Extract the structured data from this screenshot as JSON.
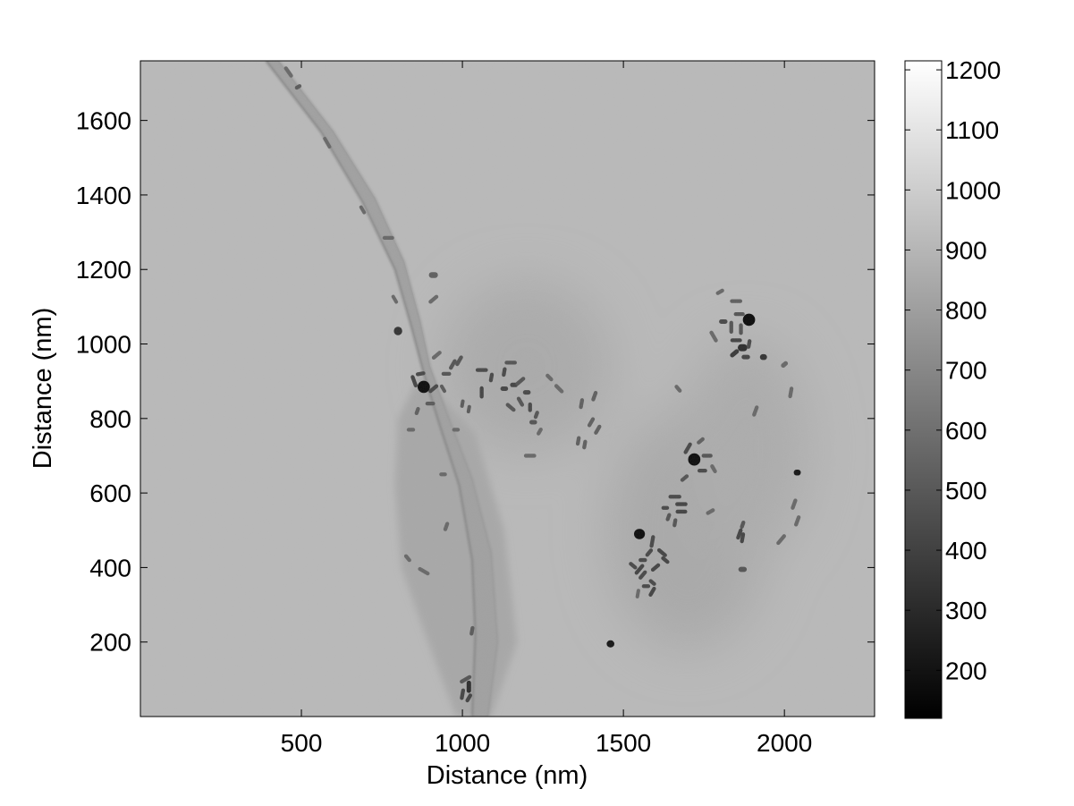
{
  "chart_data": {
    "type": "heatmap",
    "title": "",
    "xlabel": "Distance (nm)",
    "ylabel": "Distance (nm)",
    "xlim": [
      0,
      2280
    ],
    "ylim": [
      0,
      1760
    ],
    "x_ticks": [
      500,
      1000,
      1500,
      2000
    ],
    "y_ticks": [
      200,
      400,
      600,
      800,
      1000,
      1200,
      1400,
      1600
    ],
    "colorbar": {
      "colormap": "gray",
      "range": [
        120,
        1215
      ],
      "ticks": [
        200,
        300,
        400,
        500,
        600,
        700,
        800,
        900,
        1000,
        1100,
        1200
      ]
    },
    "background_intensity": 915,
    "membrane": {
      "edge_intensity": 760,
      "body_intensity": 835,
      "outer_edge": [
        [
          390,
          1760
        ],
        [
          560,
          1570
        ],
        [
          690,
          1380
        ],
        [
          790,
          1200
        ],
        [
          840,
          1050
        ],
        [
          880,
          920
        ],
        [
          930,
          780
        ],
        [
          990,
          620
        ],
        [
          1030,
          420
        ],
        [
          1040,
          220
        ],
        [
          1030,
          0
        ]
      ],
      "inner_edge": [
        [
          430,
          1760
        ],
        [
          600,
          1570
        ],
        [
          730,
          1390
        ],
        [
          820,
          1220
        ],
        [
          870,
          1060
        ],
        [
          900,
          940
        ],
        [
          950,
          820
        ],
        [
          1030,
          640
        ],
        [
          1090,
          440
        ],
        [
          1110,
          200
        ],
        [
          1080,
          0
        ]
      ],
      "wide_body": [
        [
          870,
          920
        ],
        [
          800,
          800
        ],
        [
          790,
          620
        ],
        [
          810,
          400
        ],
        [
          880,
          230
        ],
        [
          980,
          0
        ],
        [
          1090,
          0
        ],
        [
          1170,
          200
        ],
        [
          1130,
          500
        ],
        [
          1040,
          760
        ]
      ]
    },
    "diffuse_regions": [
      {
        "x": 1200,
        "y": 940,
        "rx": 260,
        "ry": 230,
        "intensity": 850
      },
      {
        "x": 1700,
        "y": 500,
        "rx": 250,
        "ry": 320,
        "intensity": 845
      },
      {
        "x": 1880,
        "y": 720,
        "rx": 200,
        "ry": 300,
        "intensity": 860
      }
    ],
    "particles": [
      {
        "x": 460,
        "y": 1730,
        "len": 40,
        "w": 12,
        "angle": -55,
        "intensity": 560
      },
      {
        "x": 490,
        "y": 1690,
        "len": 22,
        "w": 12,
        "angle": 30,
        "intensity": 500
      },
      {
        "x": 580,
        "y": 1540,
        "len": 40,
        "w": 11,
        "angle": -60,
        "intensity": 560
      },
      {
        "x": 690,
        "y": 1360,
        "len": 30,
        "w": 11,
        "angle": -60,
        "intensity": 560
      },
      {
        "x": 770,
        "y": 1285,
        "len": 36,
        "w": 12,
        "angle": 0,
        "intensity": 560
      },
      {
        "x": 910,
        "y": 1185,
        "len": 28,
        "w": 18,
        "angle": 0,
        "intensity": 520
      },
      {
        "x": 910,
        "y": 1120,
        "len": 36,
        "w": 12,
        "angle": 40,
        "intensity": 560
      },
      {
        "x": 790,
        "y": 1120,
        "len": 30,
        "w": 11,
        "angle": -60,
        "intensity": 560
      },
      {
        "x": 800,
        "y": 1035,
        "len": 26,
        "w": 26,
        "angle": 0,
        "intensity": 330
      },
      {
        "x": 880,
        "y": 885,
        "len": 38,
        "w": 38,
        "angle": 0,
        "intensity": 160
      },
      {
        "x": 850,
        "y": 900,
        "len": 40,
        "w": 12,
        "angle": -70,
        "intensity": 400
      },
      {
        "x": 910,
        "y": 880,
        "len": 36,
        "w": 12,
        "angle": 40,
        "intensity": 420
      },
      {
        "x": 900,
        "y": 840,
        "len": 30,
        "w": 12,
        "angle": 0,
        "intensity": 500
      },
      {
        "x": 860,
        "y": 820,
        "len": 26,
        "w": 12,
        "angle": 70,
        "intensity": 520
      },
      {
        "x": 870,
        "y": 920,
        "len": 30,
        "w": 12,
        "angle": 10,
        "intensity": 420
      },
      {
        "x": 920,
        "y": 970,
        "len": 36,
        "w": 12,
        "angle": 40,
        "intensity": 560
      },
      {
        "x": 970,
        "y": 945,
        "len": 36,
        "w": 12,
        "angle": 60,
        "intensity": 470
      },
      {
        "x": 990,
        "y": 955,
        "len": 36,
        "w": 12,
        "angle": 60,
        "intensity": 470
      },
      {
        "x": 950,
        "y": 920,
        "len": 30,
        "w": 12,
        "angle": 0,
        "intensity": 470
      },
      {
        "x": 940,
        "y": 880,
        "len": 28,
        "w": 11,
        "angle": -60,
        "intensity": 500
      },
      {
        "x": 1000,
        "y": 840,
        "len": 26,
        "w": 11,
        "angle": 80,
        "intensity": 500
      },
      {
        "x": 1020,
        "y": 825,
        "len": 26,
        "w": 11,
        "angle": 80,
        "intensity": 500
      },
      {
        "x": 980,
        "y": 770,
        "len": 24,
        "w": 12,
        "angle": 0,
        "intensity": 560
      },
      {
        "x": 840,
        "y": 770,
        "len": 26,
        "w": 12,
        "angle": 0,
        "intensity": 560
      },
      {
        "x": 1060,
        "y": 930,
        "len": 38,
        "w": 12,
        "angle": 0,
        "intensity": 420
      },
      {
        "x": 1060,
        "y": 870,
        "len": 38,
        "w": 12,
        "angle": 90,
        "intensity": 400
      },
      {
        "x": 1090,
        "y": 910,
        "len": 30,
        "w": 12,
        "angle": 80,
        "intensity": 420
      },
      {
        "x": 1130,
        "y": 925,
        "len": 30,
        "w": 12,
        "angle": 80,
        "intensity": 420
      },
      {
        "x": 1150,
        "y": 950,
        "len": 38,
        "w": 12,
        "angle": 0,
        "intensity": 470
      },
      {
        "x": 1130,
        "y": 880,
        "len": 24,
        "w": 14,
        "angle": 0,
        "intensity": 400
      },
      {
        "x": 1160,
        "y": 890,
        "len": 24,
        "w": 14,
        "angle": 0,
        "intensity": 400
      },
      {
        "x": 1180,
        "y": 900,
        "len": 36,
        "w": 12,
        "angle": 40,
        "intensity": 470
      },
      {
        "x": 1200,
        "y": 870,
        "len": 24,
        "w": 14,
        "angle": 0,
        "intensity": 420
      },
      {
        "x": 1180,
        "y": 845,
        "len": 34,
        "w": 12,
        "angle": -60,
        "intensity": 470
      },
      {
        "x": 1150,
        "y": 830,
        "len": 36,
        "w": 12,
        "angle": -40,
        "intensity": 470
      },
      {
        "x": 1210,
        "y": 830,
        "len": 30,
        "w": 12,
        "angle": 90,
        "intensity": 420
      },
      {
        "x": 1230,
        "y": 810,
        "len": 26,
        "w": 12,
        "angle": 70,
        "intensity": 470
      },
      {
        "x": 1220,
        "y": 790,
        "len": 24,
        "w": 14,
        "angle": 0,
        "intensity": 470
      },
      {
        "x": 1240,
        "y": 765,
        "len": 26,
        "w": 12,
        "angle": 60,
        "intensity": 560
      },
      {
        "x": 1300,
        "y": 880,
        "len": 36,
        "w": 12,
        "angle": -45,
        "intensity": 560
      },
      {
        "x": 1270,
        "y": 910,
        "len": 28,
        "w": 12,
        "angle": -45,
        "intensity": 560
      },
      {
        "x": 1210,
        "y": 700,
        "len": 38,
        "w": 12,
        "angle": 0,
        "intensity": 560
      },
      {
        "x": 1370,
        "y": 840,
        "len": 34,
        "w": 12,
        "angle": 80,
        "intensity": 520
      },
      {
        "x": 1410,
        "y": 860,
        "len": 34,
        "w": 12,
        "angle": 70,
        "intensity": 520
      },
      {
        "x": 1400,
        "y": 790,
        "len": 34,
        "w": 12,
        "angle": 60,
        "intensity": 520
      },
      {
        "x": 1420,
        "y": 770,
        "len": 34,
        "w": 12,
        "angle": 60,
        "intensity": 520
      },
      {
        "x": 1360,
        "y": 740,
        "len": 30,
        "w": 12,
        "angle": 80,
        "intensity": 520
      },
      {
        "x": 1380,
        "y": 730,
        "len": 30,
        "w": 12,
        "angle": 80,
        "intensity": 520
      },
      {
        "x": 1800,
        "y": 1140,
        "len": 28,
        "w": 12,
        "angle": 30,
        "intensity": 560
      },
      {
        "x": 1850,
        "y": 1115,
        "len": 38,
        "w": 12,
        "angle": 0,
        "intensity": 520
      },
      {
        "x": 1810,
        "y": 1060,
        "len": 26,
        "w": 14,
        "angle": 0,
        "intensity": 420
      },
      {
        "x": 1835,
        "y": 1045,
        "len": 40,
        "w": 12,
        "angle": 90,
        "intensity": 470
      },
      {
        "x": 1860,
        "y": 1080,
        "len": 34,
        "w": 12,
        "angle": 0,
        "intensity": 470
      },
      {
        "x": 1890,
        "y": 1065,
        "len": 38,
        "w": 38,
        "angle": 0,
        "intensity": 150
      },
      {
        "x": 1865,
        "y": 1040,
        "len": 36,
        "w": 12,
        "angle": 90,
        "intensity": 470
      },
      {
        "x": 1780,
        "y": 1020,
        "len": 40,
        "w": 12,
        "angle": -60,
        "intensity": 560
      },
      {
        "x": 1850,
        "y": 1010,
        "len": 36,
        "w": 12,
        "angle": 0,
        "intensity": 400
      },
      {
        "x": 1870,
        "y": 990,
        "len": 30,
        "w": 22,
        "angle": 0,
        "intensity": 300
      },
      {
        "x": 1890,
        "y": 1000,
        "len": 30,
        "w": 12,
        "angle": 80,
        "intensity": 420
      },
      {
        "x": 1845,
        "y": 975,
        "len": 32,
        "w": 14,
        "angle": 40,
        "intensity": 350
      },
      {
        "x": 1880,
        "y": 965,
        "len": 26,
        "w": 14,
        "angle": 0,
        "intensity": 400
      },
      {
        "x": 1935,
        "y": 965,
        "len": 22,
        "w": 18,
        "angle": 0,
        "intensity": 330
      },
      {
        "x": 2000,
        "y": 945,
        "len": 24,
        "w": 14,
        "angle": 40,
        "intensity": 560
      },
      {
        "x": 2020,
        "y": 870,
        "len": 36,
        "w": 12,
        "angle": 80,
        "intensity": 560
      },
      {
        "x": 1670,
        "y": 880,
        "len": 28,
        "w": 12,
        "angle": -50,
        "intensity": 560
      },
      {
        "x": 1910,
        "y": 820,
        "len": 36,
        "w": 12,
        "angle": 70,
        "intensity": 560
      },
      {
        "x": 1720,
        "y": 690,
        "len": 38,
        "w": 38,
        "angle": 0,
        "intensity": 160
      },
      {
        "x": 1700,
        "y": 720,
        "len": 40,
        "w": 12,
        "angle": 60,
        "intensity": 420
      },
      {
        "x": 1740,
        "y": 740,
        "len": 28,
        "w": 12,
        "angle": 40,
        "intensity": 520
      },
      {
        "x": 1760,
        "y": 700,
        "len": 34,
        "w": 12,
        "angle": 0,
        "intensity": 470
      },
      {
        "x": 1745,
        "y": 660,
        "len": 30,
        "w": 12,
        "angle": 0,
        "intensity": 420
      },
      {
        "x": 1690,
        "y": 640,
        "len": 30,
        "w": 12,
        "angle": 40,
        "intensity": 470
      },
      {
        "x": 1780,
        "y": 665,
        "len": 30,
        "w": 12,
        "angle": -60,
        "intensity": 560
      },
      {
        "x": 2040,
        "y": 655,
        "len": 22,
        "w": 18,
        "angle": 0,
        "intensity": 200
      },
      {
        "x": 1660,
        "y": 590,
        "len": 40,
        "w": 12,
        "angle": 0,
        "intensity": 420
      },
      {
        "x": 1680,
        "y": 570,
        "len": 38,
        "w": 12,
        "angle": 0,
        "intensity": 400
      },
      {
        "x": 1680,
        "y": 550,
        "len": 36,
        "w": 12,
        "angle": 0,
        "intensity": 400
      },
      {
        "x": 1630,
        "y": 560,
        "len": 24,
        "w": 12,
        "angle": 0,
        "intensity": 420
      },
      {
        "x": 1640,
        "y": 535,
        "len": 26,
        "w": 12,
        "angle": 70,
        "intensity": 470
      },
      {
        "x": 1660,
        "y": 520,
        "len": 28,
        "w": 12,
        "angle": 80,
        "intensity": 470
      },
      {
        "x": 1770,
        "y": 550,
        "len": 30,
        "w": 12,
        "angle": 30,
        "intensity": 560
      },
      {
        "x": 1550,
        "y": 490,
        "len": 34,
        "w": 32,
        "angle": 0,
        "intensity": 160
      },
      {
        "x": 1590,
        "y": 470,
        "len": 40,
        "w": 12,
        "angle": 80,
        "intensity": 420
      },
      {
        "x": 1580,
        "y": 440,
        "len": 30,
        "w": 12,
        "angle": 50,
        "intensity": 420
      },
      {
        "x": 1620,
        "y": 440,
        "len": 36,
        "w": 12,
        "angle": -40,
        "intensity": 400
      },
      {
        "x": 1630,
        "y": 420,
        "len": 30,
        "w": 12,
        "angle": -40,
        "intensity": 400
      },
      {
        "x": 1600,
        "y": 400,
        "len": 34,
        "w": 12,
        "angle": 40,
        "intensity": 400
      },
      {
        "x": 1560,
        "y": 420,
        "len": 26,
        "w": 12,
        "angle": 0,
        "intensity": 420
      },
      {
        "x": 1550,
        "y": 395,
        "len": 40,
        "w": 12,
        "angle": 50,
        "intensity": 400
      },
      {
        "x": 1530,
        "y": 405,
        "len": 30,
        "w": 12,
        "angle": -40,
        "intensity": 420
      },
      {
        "x": 1560,
        "y": 380,
        "len": 34,
        "w": 12,
        "angle": 50,
        "intensity": 420
      },
      {
        "x": 1590,
        "y": 360,
        "len": 26,
        "w": 12,
        "angle": -40,
        "intensity": 420
      },
      {
        "x": 1590,
        "y": 335,
        "len": 34,
        "w": 12,
        "angle": 60,
        "intensity": 400
      },
      {
        "x": 1570,
        "y": 350,
        "len": 26,
        "w": 12,
        "angle": 0,
        "intensity": 420
      },
      {
        "x": 1545,
        "y": 330,
        "len": 30,
        "w": 11,
        "angle": 80,
        "intensity": 560
      },
      {
        "x": 1870,
        "y": 515,
        "len": 26,
        "w": 12,
        "angle": 70,
        "intensity": 470
      },
      {
        "x": 1860,
        "y": 490,
        "len": 36,
        "w": 12,
        "angle": 70,
        "intensity": 400
      },
      {
        "x": 1870,
        "y": 480,
        "len": 34,
        "w": 12,
        "angle": 80,
        "intensity": 400
      },
      {
        "x": 2030,
        "y": 570,
        "len": 36,
        "w": 12,
        "angle": 70,
        "intensity": 560
      },
      {
        "x": 2040,
        "y": 525,
        "len": 36,
        "w": 12,
        "angle": 70,
        "intensity": 560
      },
      {
        "x": 1990,
        "y": 475,
        "len": 40,
        "w": 12,
        "angle": 50,
        "intensity": 560
      },
      {
        "x": 1870,
        "y": 395,
        "len": 26,
        "w": 16,
        "angle": 0,
        "intensity": 470
      },
      {
        "x": 1460,
        "y": 195,
        "len": 24,
        "w": 22,
        "angle": 0,
        "intensity": 200
      },
      {
        "x": 830,
        "y": 425,
        "len": 28,
        "w": 12,
        "angle": -50,
        "intensity": 560
      },
      {
        "x": 880,
        "y": 390,
        "len": 40,
        "w": 12,
        "angle": -30,
        "intensity": 560
      },
      {
        "x": 950,
        "y": 510,
        "len": 30,
        "w": 12,
        "angle": 70,
        "intensity": 560
      },
      {
        "x": 940,
        "y": 650,
        "len": 24,
        "w": 12,
        "angle": 0,
        "intensity": 560
      },
      {
        "x": 1030,
        "y": 230,
        "len": 30,
        "w": 12,
        "angle": 80,
        "intensity": 500
      },
      {
        "x": 1010,
        "y": 100,
        "len": 40,
        "w": 12,
        "angle": 30,
        "intensity": 470
      },
      {
        "x": 1020,
        "y": 80,
        "len": 38,
        "w": 14,
        "angle": 90,
        "intensity": 300
      },
      {
        "x": 1000,
        "y": 60,
        "len": 36,
        "w": 12,
        "angle": 80,
        "intensity": 400
      },
      {
        "x": 1020,
        "y": 50,
        "len": 30,
        "w": 12,
        "angle": 60,
        "intensity": 400
      }
    ]
  }
}
